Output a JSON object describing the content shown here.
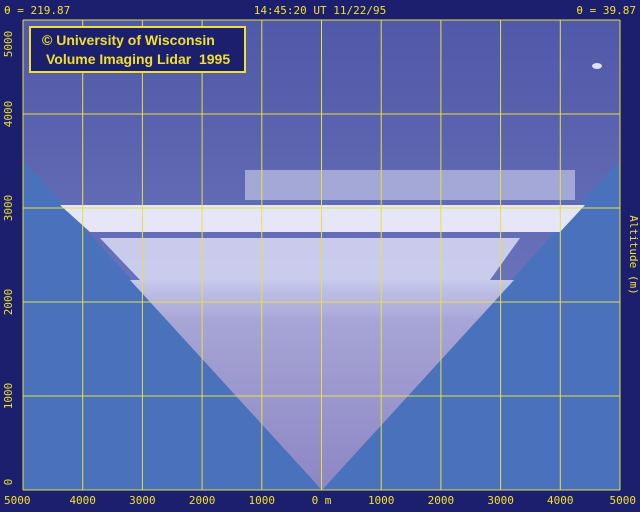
{
  "header": {
    "left": "θ = 219.87",
    "center": "14:45:20 UT 11/22/95",
    "right": "θ = 39.87"
  },
  "credit": {
    "line1": "© University of Wisconsin",
    "line2": "Volume Imaging Lidar  1995"
  },
  "axes": {
    "x_ticks": [
      "5000",
      "4000",
      "3000",
      "2000",
      "1000",
      "0 m",
      "1000",
      "2000",
      "3000",
      "4000",
      "5000"
    ],
    "y_ticks": [
      "0",
      "1000",
      "2000",
      "3000",
      "4000",
      "5000"
    ],
    "y_label": "Altitude (m)"
  }
}
